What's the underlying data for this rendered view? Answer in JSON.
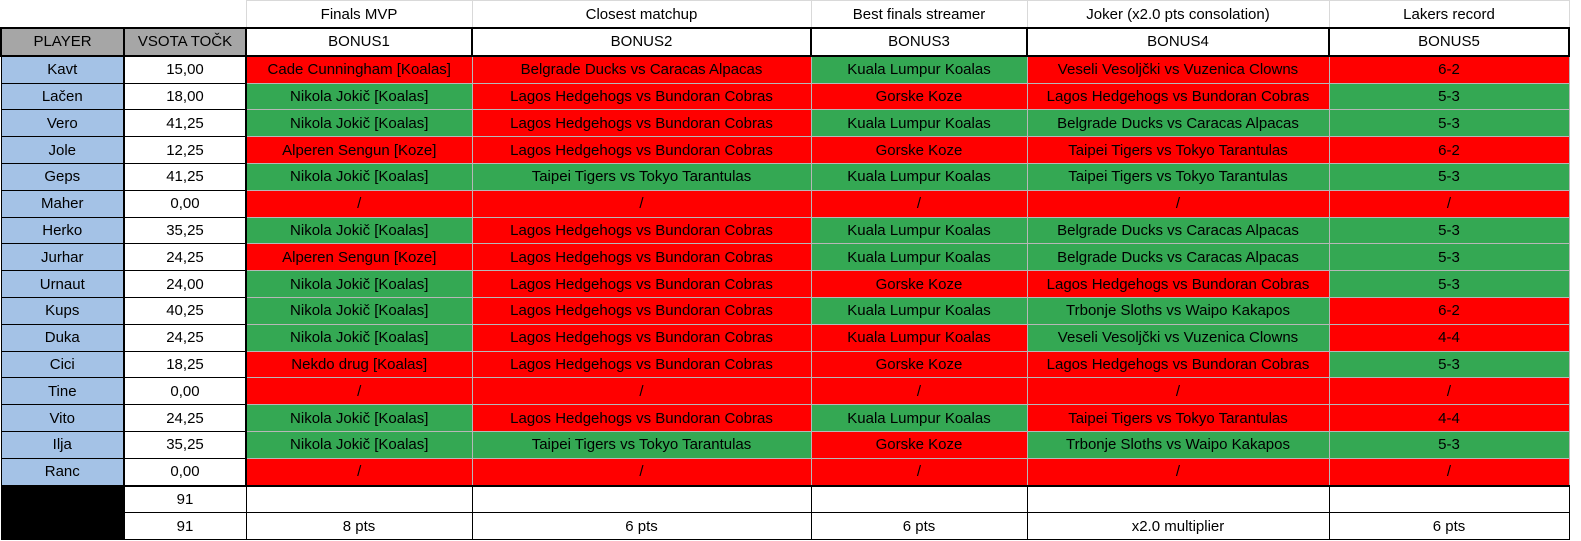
{
  "colors": {
    "green": "#34a853",
    "red": "#ff0000",
    "player_bg": "#a4c2e6",
    "header_bg": "#a6a6a6"
  },
  "titles": [
    "Finals MVP",
    "Closest matchup",
    "Best finals streamer",
    "Joker (x2.0 pts consolation)",
    "Lakers record"
  ],
  "header": {
    "player": "PLAYER",
    "sum": "VSOTA TOČK",
    "bonuses": [
      "BONUS1",
      "BONUS2",
      "BONUS3",
      "BONUS4",
      "BONUS5"
    ]
  },
  "rows": [
    {
      "player": "Kavt",
      "sum": "15,00",
      "picks": [
        "Cade Cunningham [Koalas]",
        "Belgrade Ducks vs Caracas Alpacas",
        "Kuala Lumpur Koalas",
        "Veseli Vesoljčki vs Vuzenica Clowns",
        "6-2"
      ],
      "status": [
        "red",
        "red",
        "green",
        "red",
        "red"
      ]
    },
    {
      "player": "Lačen",
      "sum": "18,00",
      "picks": [
        "Nikola Jokič [Koalas]",
        "Lagos Hedgehogs vs Bundoran Cobras",
        "Gorske Koze",
        "Lagos Hedgehogs vs Bundoran Cobras",
        "5-3"
      ],
      "status": [
        "green",
        "red",
        "red",
        "red",
        "green"
      ]
    },
    {
      "player": "Vero",
      "sum": "41,25",
      "picks": [
        "Nikola Jokič [Koalas]",
        "Lagos Hedgehogs vs Bundoran Cobras",
        "Kuala Lumpur Koalas",
        "Belgrade Ducks vs Caracas Alpacas",
        "5-3"
      ],
      "status": [
        "green",
        "red",
        "green",
        "green",
        "green"
      ]
    },
    {
      "player": "Jole",
      "sum": "12,25",
      "picks": [
        "Alperen Sengun [Koze]",
        "Lagos Hedgehogs vs Bundoran Cobras",
        "Gorske Koze",
        "Taipei Tigers vs Tokyo Tarantulas",
        "6-2"
      ],
      "status": [
        "red",
        "red",
        "red",
        "red",
        "red"
      ]
    },
    {
      "player": "Geps",
      "sum": "41,25",
      "picks": [
        "Nikola Jokič [Koalas]",
        "Taipei Tigers vs Tokyo Tarantulas",
        "Kuala Lumpur Koalas",
        "Taipei Tigers vs Tokyo Tarantulas",
        "5-3"
      ],
      "status": [
        "green",
        "green",
        "green",
        "green",
        "green"
      ]
    },
    {
      "player": "Maher",
      "sum": "0,00",
      "picks": [
        "/",
        "/",
        "/",
        "/",
        "/"
      ],
      "status": [
        "red",
        "red",
        "red",
        "red",
        "red"
      ]
    },
    {
      "player": "Herko",
      "sum": "35,25",
      "picks": [
        "Nikola Jokič [Koalas]",
        "Lagos Hedgehogs vs Bundoran Cobras",
        "Kuala Lumpur Koalas",
        "Belgrade Ducks vs Caracas Alpacas",
        "5-3"
      ],
      "status": [
        "green",
        "red",
        "green",
        "green",
        "green"
      ]
    },
    {
      "player": "Jurhar",
      "sum": "24,25",
      "picks": [
        "Alperen Sengun [Koze]",
        "Lagos Hedgehogs vs Bundoran Cobras",
        "Kuala Lumpur Koalas",
        "Belgrade Ducks vs Caracas Alpacas",
        "5-3"
      ],
      "status": [
        "red",
        "red",
        "green",
        "green",
        "green"
      ]
    },
    {
      "player": "Urnaut",
      "sum": "24,00",
      "picks": [
        "Nikola Jokič [Koalas]",
        "Lagos Hedgehogs vs Bundoran Cobras",
        "Gorske Koze",
        "Lagos Hedgehogs vs Bundoran Cobras",
        "5-3"
      ],
      "status": [
        "green",
        "red",
        "red",
        "red",
        "green"
      ]
    },
    {
      "player": "Kups",
      "sum": "40,25",
      "picks": [
        "Nikola Jokič [Koalas]",
        "Lagos Hedgehogs vs Bundoran Cobras",
        "Kuala Lumpur Koalas",
        "Trbonje Sloths vs Waipo Kakapos",
        "6-2"
      ],
      "status": [
        "green",
        "red",
        "green",
        "green",
        "red"
      ]
    },
    {
      "player": "Duka",
      "sum": "24,25",
      "picks": [
        "Nikola Jokič [Koalas]",
        "Lagos Hedgehogs vs Bundoran Cobras",
        "Kuala Lumpur Koalas",
        "Veseli Vesoljčki vs Vuzenica Clowns",
        "4-4"
      ],
      "status": [
        "green",
        "red",
        "red",
        "green",
        "red"
      ]
    },
    {
      "player": "Cici",
      "sum": "18,25",
      "picks": [
        "Nekdo drug [Koalas]",
        "Lagos Hedgehogs vs Bundoran Cobras",
        "Gorske Koze",
        "Lagos Hedgehogs vs Bundoran Cobras",
        "5-3"
      ],
      "status": [
        "red",
        "red",
        "red",
        "red",
        "green"
      ]
    },
    {
      "player": "Tine",
      "sum": "0,00",
      "picks": [
        "/",
        "/",
        "/",
        "/",
        "/"
      ],
      "status": [
        "red",
        "red",
        "red",
        "red",
        "red"
      ]
    },
    {
      "player": "Vito",
      "sum": "24,25",
      "picks": [
        "Nikola Jokič [Koalas]",
        "Lagos Hedgehogs vs Bundoran Cobras",
        "Kuala Lumpur Koalas",
        "Taipei Tigers vs Tokyo Tarantulas",
        "4-4"
      ],
      "status": [
        "green",
        "red",
        "green",
        "red",
        "red"
      ]
    },
    {
      "player": "Ilja",
      "sum": "35,25",
      "picks": [
        "Nikola Jokič [Koalas]",
        "Taipei Tigers vs Tokyo Tarantulas",
        "Gorske Koze",
        "Trbonje Sloths vs Waipo Kakapos",
        "5-3"
      ],
      "status": [
        "green",
        "green",
        "red",
        "green",
        "green"
      ]
    },
    {
      "player": "Ranc",
      "sum": "0,00",
      "picks": [
        "/",
        "/",
        "/",
        "/",
        "/"
      ],
      "status": [
        "red",
        "red",
        "red",
        "red",
        "red"
      ]
    }
  ],
  "totals": {
    "row1_sum": "91",
    "row2_sum": "91",
    "points": [
      "8 pts",
      "6 pts",
      "6 pts",
      "x2.0 multiplier",
      "6 pts"
    ]
  }
}
